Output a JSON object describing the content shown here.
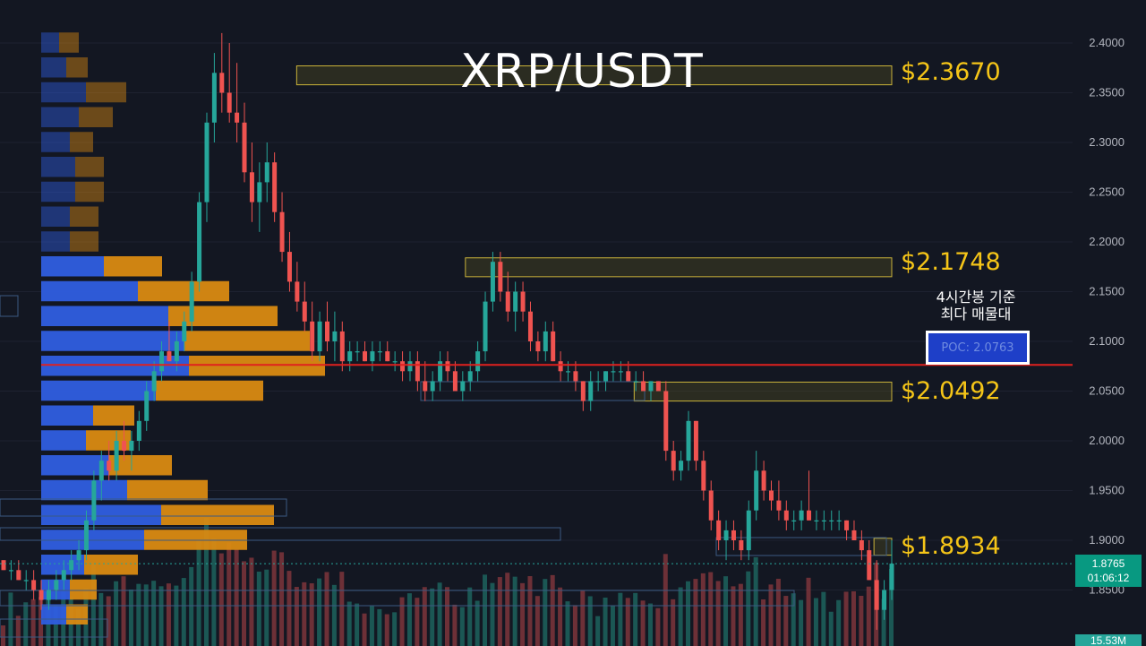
{
  "header": {
    "title": "XRP/USDT"
  },
  "levels": {
    "l1": "$2.3670",
    "l2": "$2.1748",
    "l3": "$2.0492",
    "l4": "$1.8934"
  },
  "annotation": {
    "line1": "4시간봉 기준",
    "line2": "최다 매물대"
  },
  "poc_label": "POC: 2.0763",
  "price_tag": {
    "price": "1.8765",
    "countdown": "01:06:12"
  },
  "volume_tag": "15.53M",
  "colors": {
    "background": "#131722",
    "up": "#26a69a",
    "down": "#ef5350",
    "level": "#f5c518",
    "poc_line": "#e0201e",
    "profile_blue": "#2f5ee0",
    "profile_orange": "#d98a12"
  },
  "chart_data": {
    "type": "candlestick",
    "pair": "XRP/USDT",
    "interval": "4시간봉",
    "ylim": [
      1.81,
      2.42
    ],
    "y_ticks": [
      "2.4000",
      "2.3500",
      "2.3000",
      "2.2500",
      "2.2000",
      "2.1500",
      "2.1000",
      "2.0500",
      "2.0000",
      "1.9500",
      "1.9000",
      "1.8500"
    ],
    "last_price": 1.8765,
    "poc": 2.0763,
    "resistance_zones": [
      {
        "label": "$2.3670",
        "low": 2.358,
        "high": 2.377,
        "x_start": 0.33
      },
      {
        "label": "$2.1748",
        "low": 2.165,
        "high": 2.184,
        "x_start": 0.52
      },
      {
        "label": "$2.0492",
        "low": 2.04,
        "high": 2.059,
        "x_start": 0.71
      },
      {
        "label": "$1.8934",
        "low": 1.885,
        "high": 1.902,
        "x_start": 0.98
      }
    ],
    "candles": [
      [
        1.88,
        1.88,
        1.87,
        1.87
      ],
      [
        1.87,
        1.88,
        1.86,
        1.87
      ],
      [
        1.87,
        1.88,
        1.86,
        1.86
      ],
      [
        1.86,
        1.87,
        1.85,
        1.86
      ],
      [
        1.86,
        1.87,
        1.84,
        1.85
      ],
      [
        1.85,
        1.86,
        1.83,
        1.84
      ],
      [
        1.84,
        1.86,
        1.83,
        1.85
      ],
      [
        1.85,
        1.87,
        1.84,
        1.86
      ],
      [
        1.86,
        1.88,
        1.85,
        1.87
      ],
      [
        1.87,
        1.89,
        1.86,
        1.88
      ],
      [
        1.88,
        1.9,
        1.87,
        1.89
      ],
      [
        1.89,
        1.93,
        1.88,
        1.92
      ],
      [
        1.92,
        1.97,
        1.91,
        1.96
      ],
      [
        1.96,
        1.99,
        1.94,
        1.98
      ],
      [
        1.98,
        2.0,
        1.96,
        1.97
      ],
      [
        1.97,
        2.01,
        1.96,
        2.0
      ],
      [
        2.0,
        2.02,
        1.98,
        1.99
      ],
      [
        1.99,
        2.01,
        1.97,
        2.0
      ],
      [
        2.0,
        2.03,
        1.99,
        2.02
      ],
      [
        2.02,
        2.06,
        2.01,
        2.05
      ],
      [
        2.05,
        2.08,
        2.04,
        2.07
      ],
      [
        2.07,
        2.1,
        2.06,
        2.09
      ],
      [
        2.09,
        2.12,
        2.08,
        2.08
      ],
      [
        2.08,
        2.11,
        2.07,
        2.1
      ],
      [
        2.1,
        2.13,
        2.09,
        2.12
      ],
      [
        2.12,
        2.17,
        2.11,
        2.16
      ],
      [
        2.16,
        2.25,
        2.15,
        2.24
      ],
      [
        2.24,
        2.33,
        2.22,
        2.32
      ],
      [
        2.32,
        2.39,
        2.3,
        2.37
      ],
      [
        2.37,
        2.41,
        2.33,
        2.35
      ],
      [
        2.35,
        2.4,
        2.32,
        2.33
      ],
      [
        2.33,
        2.38,
        2.3,
        2.32
      ],
      [
        2.32,
        2.34,
        2.26,
        2.27
      ],
      [
        2.27,
        2.3,
        2.22,
        2.24
      ],
      [
        2.24,
        2.28,
        2.21,
        2.26
      ],
      [
        2.26,
        2.3,
        2.24,
        2.28
      ],
      [
        2.28,
        2.29,
        2.22,
        2.23
      ],
      [
        2.23,
        2.25,
        2.18,
        2.19
      ],
      [
        2.19,
        2.21,
        2.15,
        2.16
      ],
      [
        2.16,
        2.18,
        2.13,
        2.14
      ],
      [
        2.14,
        2.16,
        2.11,
        2.12
      ],
      [
        2.12,
        2.14,
        2.08,
        2.09
      ],
      [
        2.09,
        2.13,
        2.08,
        2.12
      ],
      [
        2.12,
        2.14,
        2.09,
        2.1
      ],
      [
        2.1,
        2.13,
        2.08,
        2.11
      ],
      [
        2.11,
        2.12,
        2.07,
        2.08
      ],
      [
        2.08,
        2.1,
        2.07,
        2.09
      ],
      [
        2.09,
        2.1,
        2.08,
        2.09
      ],
      [
        2.09,
        2.1,
        2.08,
        2.08
      ],
      [
        2.08,
        2.1,
        2.07,
        2.09
      ],
      [
        2.09,
        2.1,
        2.08,
        2.09
      ],
      [
        2.09,
        2.1,
        2.08,
        2.08
      ],
      [
        2.08,
        2.09,
        2.07,
        2.08
      ],
      [
        2.08,
        2.09,
        2.06,
        2.07
      ],
      [
        2.07,
        2.09,
        2.06,
        2.08
      ],
      [
        2.08,
        2.09,
        2.05,
        2.06
      ],
      [
        2.06,
        2.08,
        2.04,
        2.05
      ],
      [
        2.05,
        2.07,
        2.04,
        2.06
      ],
      [
        2.06,
        2.09,
        2.05,
        2.08
      ],
      [
        2.08,
        2.09,
        2.06,
        2.07
      ],
      [
        2.07,
        2.08,
        2.05,
        2.05
      ],
      [
        2.05,
        2.07,
        2.04,
        2.06
      ],
      [
        2.06,
        2.08,
        2.05,
        2.07
      ],
      [
        2.07,
        2.1,
        2.06,
        2.09
      ],
      [
        2.09,
        2.15,
        2.08,
        2.14
      ],
      [
        2.14,
        2.19,
        2.13,
        2.18
      ],
      [
        2.18,
        2.19,
        2.14,
        2.15
      ],
      [
        2.15,
        2.17,
        2.12,
        2.13
      ],
      [
        2.13,
        2.16,
        2.11,
        2.15
      ],
      [
        2.15,
        2.16,
        2.12,
        2.13
      ],
      [
        2.13,
        2.14,
        2.09,
        2.1
      ],
      [
        2.1,
        2.11,
        2.08,
        2.09
      ],
      [
        2.09,
        2.12,
        2.08,
        2.11
      ],
      [
        2.11,
        2.12,
        2.08,
        2.08
      ],
      [
        2.08,
        2.09,
        2.06,
        2.07
      ],
      [
        2.07,
        2.08,
        2.06,
        2.07
      ],
      [
        2.07,
        2.08,
        2.05,
        2.06
      ],
      [
        2.06,
        2.06,
        2.03,
        2.04
      ],
      [
        2.04,
        2.07,
        2.03,
        2.06
      ],
      [
        2.06,
        2.07,
        2.05,
        2.06
      ],
      [
        2.06,
        2.07,
        2.05,
        2.07
      ],
      [
        2.07,
        2.08,
        2.06,
        2.07
      ],
      [
        2.07,
        2.08,
        2.06,
        2.07
      ],
      [
        2.07,
        2.08,
        2.06,
        2.06
      ],
      [
        2.06,
        2.07,
        2.05,
        2.06
      ],
      [
        2.06,
        2.07,
        2.05,
        2.05
      ],
      [
        2.05,
        2.06,
        2.04,
        2.06
      ],
      [
        2.06,
        2.06,
        2.05,
        2.05
      ],
      [
        2.05,
        2.06,
        1.98,
        1.99
      ],
      [
        1.99,
        2.0,
        1.96,
        1.97
      ],
      [
        1.97,
        1.99,
        1.96,
        1.98
      ],
      [
        1.98,
        2.03,
        1.97,
        2.02
      ],
      [
        2.02,
        2.02,
        1.97,
        1.98
      ],
      [
        1.98,
        1.99,
        1.94,
        1.95
      ],
      [
        1.95,
        1.96,
        1.91,
        1.92
      ],
      [
        1.92,
        1.93,
        1.89,
        1.9
      ],
      [
        1.9,
        1.92,
        1.88,
        1.91
      ],
      [
        1.91,
        1.92,
        1.89,
        1.9
      ],
      [
        1.9,
        1.91,
        1.88,
        1.89
      ],
      [
        1.89,
        1.94,
        1.88,
        1.93
      ],
      [
        1.93,
        1.99,
        1.92,
        1.97
      ],
      [
        1.97,
        1.98,
        1.94,
        1.95
      ],
      [
        1.95,
        1.96,
        1.93,
        1.94
      ],
      [
        1.94,
        1.96,
        1.92,
        1.93
      ],
      [
        1.93,
        1.94,
        1.91,
        1.92
      ],
      [
        1.92,
        1.93,
        1.91,
        1.92
      ],
      [
        1.92,
        1.94,
        1.91,
        1.93
      ],
      [
        1.93,
        1.97,
        1.92,
        1.92
      ],
      [
        1.92,
        1.93,
        1.91,
        1.92
      ],
      [
        1.92,
        1.93,
        1.91,
        1.92
      ],
      [
        1.92,
        1.93,
        1.91,
        1.92
      ],
      [
        1.92,
        1.93,
        1.91,
        1.92
      ],
      [
        1.92,
        1.92,
        1.9,
        1.91
      ],
      [
        1.91,
        1.92,
        1.9,
        1.9
      ],
      [
        1.9,
        1.91,
        1.88,
        1.89
      ],
      [
        1.89,
        1.9,
        1.86,
        1.86
      ],
      [
        1.86,
        1.88,
        1.81,
        1.83
      ],
      [
        1.83,
        1.86,
        1.82,
        1.85
      ],
      [
        1.85,
        1.9,
        1.84,
        1.8765
      ]
    ],
    "volume_profile": [
      {
        "price": 2.4,
        "blue": 20,
        "orange": 22
      },
      {
        "price": 2.375,
        "blue": 28,
        "orange": 24
      },
      {
        "price": 2.35,
        "blue": 50,
        "orange": 45
      },
      {
        "price": 2.325,
        "blue": 42,
        "orange": 38
      },
      {
        "price": 2.3,
        "blue": 32,
        "orange": 26
      },
      {
        "price": 2.275,
        "blue": 38,
        "orange": 32
      },
      {
        "price": 2.25,
        "blue": 38,
        "orange": 32
      },
      {
        "price": 2.225,
        "blue": 32,
        "orange": 32
      },
      {
        "price": 2.2,
        "blue": 32,
        "orange": 32
      },
      {
        "price": 2.175,
        "blue": 70,
        "orange": 65
      },
      {
        "price": 2.15,
        "blue": 108,
        "orange": 102
      },
      {
        "price": 2.125,
        "blue": 142,
        "orange": 122
      },
      {
        "price": 2.1,
        "blue": 160,
        "orange": 140
      },
      {
        "price": 2.075,
        "blue": 165,
        "orange": 152
      },
      {
        "price": 2.05,
        "blue": 128,
        "orange": 120
      },
      {
        "price": 2.025,
        "blue": 58,
        "orange": 46
      },
      {
        "price": 2.0,
        "blue": 50,
        "orange": 50
      },
      {
        "price": 1.975,
        "blue": 76,
        "orange": 70
      },
      {
        "price": 1.95,
        "blue": 96,
        "orange": 90
      },
      {
        "price": 1.925,
        "blue": 134,
        "orange": 126
      },
      {
        "price": 1.9,
        "blue": 115,
        "orange": 115
      },
      {
        "price": 1.875,
        "blue": 48,
        "orange": 60
      },
      {
        "price": 1.85,
        "blue": 32,
        "orange": 30
      },
      {
        "price": 1.825,
        "blue": 28,
        "orange": 24
      }
    ]
  }
}
